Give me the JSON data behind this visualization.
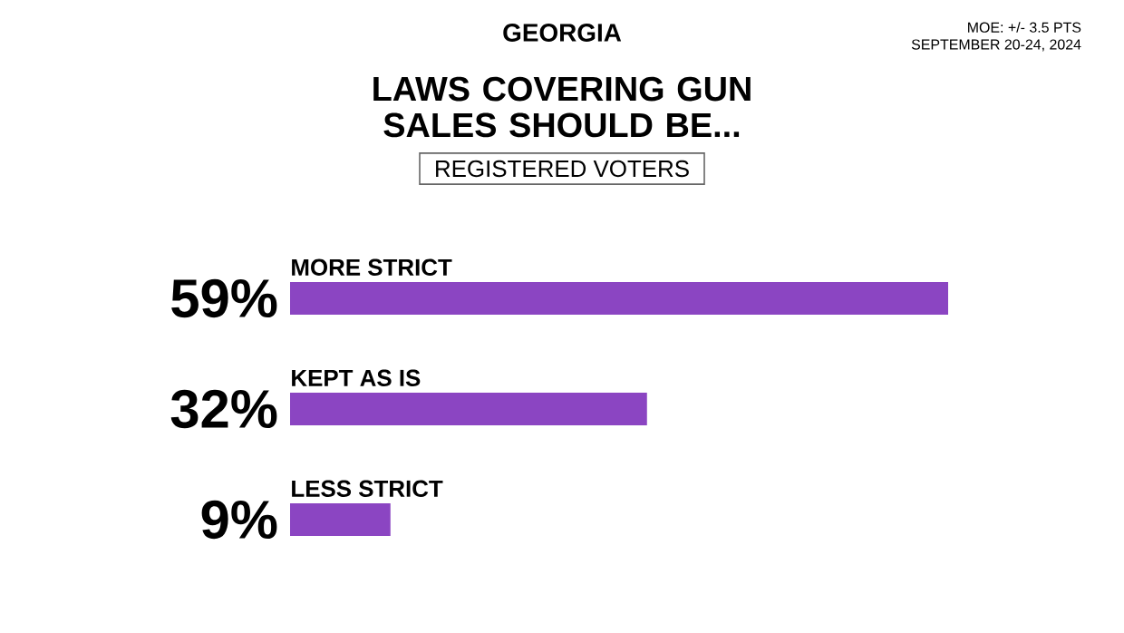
{
  "chart_data": {
    "type": "bar",
    "orientation": "horizontal",
    "title": "LAWS COVERING GUN SALES SHOULD BE...",
    "subtitle": "REGISTERED VOTERS",
    "annotations": [
      "GEORGIA",
      "MOE: +/- 3.5 PTS",
      "SEPTEMBER 20-24, 2024"
    ],
    "categories": [
      "MORE STRICT",
      "KEPT AS IS",
      "LESS STRICT"
    ],
    "values": [
      59,
      32,
      9
    ],
    "value_labels": [
      "59%",
      "32%",
      "9%"
    ],
    "color": "#8b45c2"
  }
}
